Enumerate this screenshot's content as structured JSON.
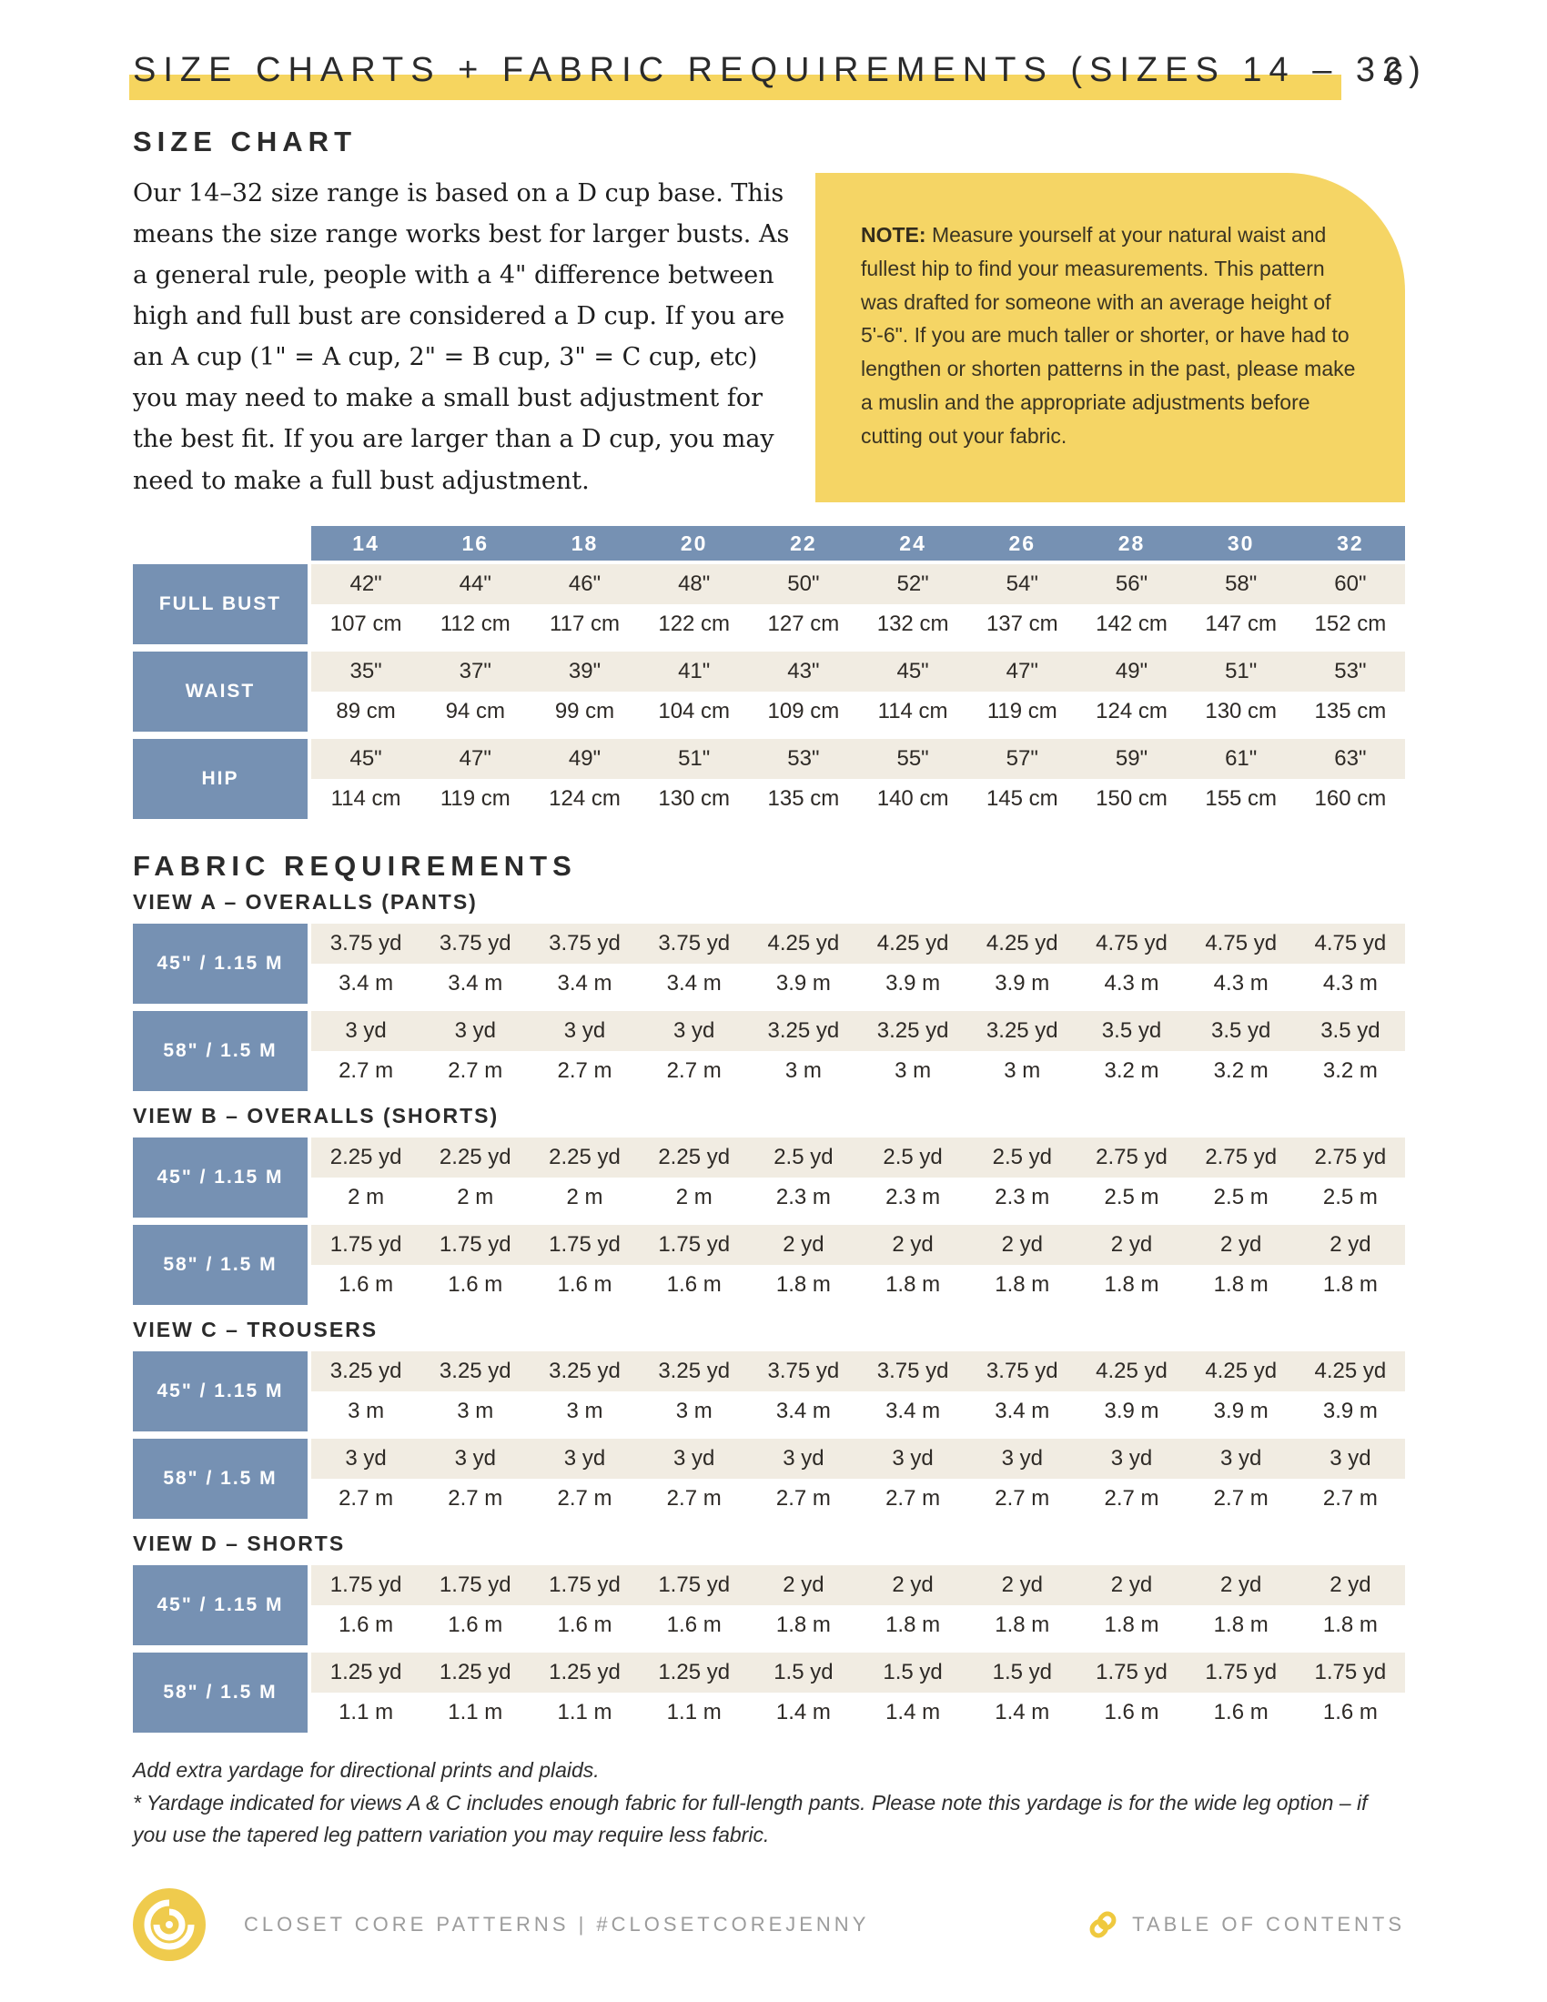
{
  "page": {
    "title": "SIZE CHARTS + FABRIC REQUIREMENTS (SIZES 14 – 32)",
    "page_number": "6"
  },
  "size_chart": {
    "heading": "SIZE CHART",
    "intro": "Our 14–32 size range is based on a D cup base. This means the size range works best for larger busts. As a general rule, people with a 4\" difference between high and full bust are considered a D cup. If you are an A cup (1\" = A cup, 2\" = B cup, 3\" = C cup, etc) you may need to make a small bust adjustment for the best fit. If you are larger than a D cup, you may need to make a full bust adjustment.",
    "note_label": "NOTE:",
    "note_text": " Measure yourself at your natural waist and fullest hip to find your measurements. This pattern was drafted for someone with an average height of 5'-6\". If you are much taller or shorter, or have had to lengthen or shorten patterns in the past, please make a muslin and the appropriate adjustments before cutting out your fabric.",
    "sizes": [
      "14",
      "16",
      "18",
      "20",
      "22",
      "24",
      "26",
      "28",
      "30",
      "32"
    ],
    "rows": [
      {
        "label": "FULL BUST",
        "inches": [
          "42\"",
          "44\"",
          "46\"",
          "48\"",
          "50\"",
          "52\"",
          "54\"",
          "56\"",
          "58\"",
          "60\""
        ],
        "cm": [
          "107 cm",
          "112 cm",
          "117 cm",
          "122 cm",
          "127 cm",
          "132 cm",
          "137 cm",
          "142 cm",
          "147 cm",
          "152 cm"
        ]
      },
      {
        "label": "WAIST",
        "inches": [
          "35\"",
          "37\"",
          "39\"",
          "41\"",
          "43\"",
          "45\"",
          "47\"",
          "49\"",
          "51\"",
          "53\""
        ],
        "cm": [
          "89 cm",
          "94 cm",
          "99 cm",
          "104 cm",
          "109 cm",
          "114 cm",
          "119 cm",
          "124 cm",
          "130 cm",
          "135 cm"
        ]
      },
      {
        "label": "HIP",
        "inches": [
          "45\"",
          "47\"",
          "49\"",
          "51\"",
          "53\"",
          "55\"",
          "57\"",
          "59\"",
          "61\"",
          "63\""
        ],
        "cm": [
          "114 cm",
          "119 cm",
          "124 cm",
          "130 cm",
          "135 cm",
          "140 cm",
          "145 cm",
          "150 cm",
          "155 cm",
          "160 cm"
        ]
      }
    ]
  },
  "fabric_requirements": {
    "heading": "FABRIC REQUIREMENTS",
    "views": [
      {
        "title": "VIEW A – OVERALLS (PANTS)",
        "rows": [
          {
            "label": "45\" / 1.15 M",
            "yd": [
              "3.75 yd",
              "3.75 yd",
              "3.75 yd",
              "3.75 yd",
              "4.25 yd",
              "4.25 yd",
              "4.25 yd",
              "4.75 yd",
              "4.75 yd",
              "4.75 yd"
            ],
            "m": [
              "3.4 m",
              "3.4 m",
              "3.4 m",
              "3.4 m",
              "3.9 m",
              "3.9 m",
              "3.9 m",
              "4.3 m",
              "4.3 m",
              "4.3 m"
            ]
          },
          {
            "label": "58\" / 1.5 M",
            "yd": [
              "3 yd",
              "3 yd",
              "3 yd",
              "3 yd",
              "3.25 yd",
              "3.25 yd",
              "3.25 yd",
              "3.5 yd",
              "3.5 yd",
              "3.5 yd"
            ],
            "m": [
              "2.7 m",
              "2.7 m",
              "2.7 m",
              "2.7 m",
              "3 m",
              "3 m",
              "3 m",
              "3.2 m",
              "3.2 m",
              "3.2 m"
            ]
          }
        ]
      },
      {
        "title": "VIEW B – OVERALLS (SHORTS)",
        "rows": [
          {
            "label": "45\" / 1.15 M",
            "yd": [
              "2.25 yd",
              "2.25 yd",
              "2.25 yd",
              "2.25 yd",
              "2.5 yd",
              "2.5 yd",
              "2.5 yd",
              "2.75 yd",
              "2.75 yd",
              "2.75 yd"
            ],
            "m": [
              "2 m",
              "2 m",
              "2 m",
              "2 m",
              "2.3 m",
              "2.3 m",
              "2.3 m",
              "2.5 m",
              "2.5 m",
              "2.5 m"
            ]
          },
          {
            "label": "58\" / 1.5 M",
            "yd": [
              "1.75 yd",
              "1.75 yd",
              "1.75 yd",
              "1.75 yd",
              "2 yd",
              "2 yd",
              "2 yd",
              "2 yd",
              "2 yd",
              "2 yd"
            ],
            "m": [
              "1.6 m",
              "1.6 m",
              "1.6 m",
              "1.6 m",
              "1.8 m",
              "1.8 m",
              "1.8 m",
              "1.8 m",
              "1.8 m",
              "1.8 m"
            ]
          }
        ]
      },
      {
        "title": "VIEW C – TROUSERS",
        "rows": [
          {
            "label": "45\" / 1.15 M",
            "yd": [
              "3.25 yd",
              "3.25 yd",
              "3.25 yd",
              "3.25 yd",
              "3.75 yd",
              "3.75 yd",
              "3.75 yd",
              "4.25 yd",
              "4.25 yd",
              "4.25 yd"
            ],
            "m": [
              "3 m",
              "3 m",
              "3 m",
              "3 m",
              "3.4 m",
              "3.4 m",
              "3.4 m",
              "3.9 m",
              "3.9 m",
              "3.9 m"
            ]
          },
          {
            "label": "58\" / 1.5 M",
            "yd": [
              "3 yd",
              "3 yd",
              "3 yd",
              "3 yd",
              "3 yd",
              "3 yd",
              "3 yd",
              "3 yd",
              "3 yd",
              "3 yd"
            ],
            "m": [
              "2.7 m",
              "2.7 m",
              "2.7 m",
              "2.7 m",
              "2.7 m",
              "2.7 m",
              "2.7 m",
              "2.7 m",
              "2.7 m",
              "2.7 m"
            ]
          }
        ]
      },
      {
        "title": "VIEW D – SHORTS",
        "rows": [
          {
            "label": "45\" / 1.15 M",
            "yd": [
              "1.75 yd",
              "1.75 yd",
              "1.75 yd",
              "1.75 yd",
              "2 yd",
              "2 yd",
              "2 yd",
              "2 yd",
              "2 yd",
              "2 yd"
            ],
            "m": [
              "1.6 m",
              "1.6 m",
              "1.6 m",
              "1.6 m",
              "1.8 m",
              "1.8 m",
              "1.8 m",
              "1.8 m",
              "1.8 m",
              "1.8 m"
            ]
          },
          {
            "label": "58\" / 1.5 M",
            "yd": [
              "1.25 yd",
              "1.25 yd",
              "1.25 yd",
              "1.25 yd",
              "1.5 yd",
              "1.5 yd",
              "1.5 yd",
              "1.75 yd",
              "1.75 yd",
              "1.75 yd"
            ],
            "m": [
              "1.1 m",
              "1.1 m",
              "1.1 m",
              "1.1 m",
              "1.4 m",
              "1.4 m",
              "1.4 m",
              "1.6 m",
              "1.6 m",
              "1.6 m"
            ]
          }
        ]
      }
    ],
    "notes": [
      "Add extra yardage for directional prints and plaids.",
      "* Yardage indicated for views A & C includes enough fabric for full-length pants. Please note this yardage is for the wide leg option – if you use the tapered leg pattern variation you may require less fabric."
    ]
  },
  "footer": {
    "brand": "CLOSET CORE PATTERNS | #CLOSETCOREJENNY",
    "toc_label": "TABLE OF CONTENTS"
  },
  "colors": {
    "accent_yellow": "#f5d565",
    "table_blue": "#7691b3",
    "row_cream": "#f1ece2",
    "footer_gray": "#9c9c9c",
    "logo_yellow": "#efcb4d"
  }
}
